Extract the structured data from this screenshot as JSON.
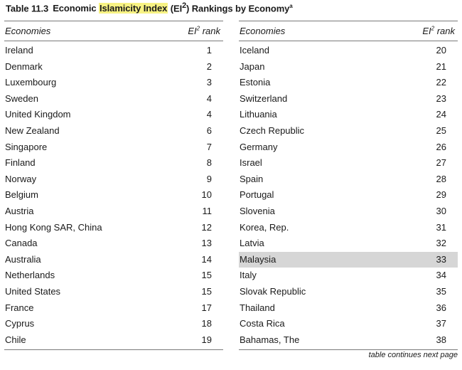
{
  "title": {
    "label": "Table 11.3",
    "pre": "Economic",
    "highlight": "Islamicity Index",
    "post_open": "(EI",
    "post_sup": "2",
    "post_close": ") Rankings by Economy",
    "asterisk": "a"
  },
  "columns": {
    "economies": "Economies",
    "rank_main": "EI",
    "rank_sup": "2",
    "rank_suffix": " rank"
  },
  "left_rows": [
    {
      "name": "Ireland",
      "rank": "1"
    },
    {
      "name": "Denmark",
      "rank": "2"
    },
    {
      "name": "Luxembourg",
      "rank": "3"
    },
    {
      "name": "Sweden",
      "rank": "4"
    },
    {
      "name": "United Kingdom",
      "rank": "4"
    },
    {
      "name": "New Zealand",
      "rank": "6"
    },
    {
      "name": "Singapore",
      "rank": "7"
    },
    {
      "name": "Finland",
      "rank": "8"
    },
    {
      "name": "Norway",
      "rank": "9"
    },
    {
      "name": "Belgium",
      "rank": "10"
    },
    {
      "name": "Austria",
      "rank": "11"
    },
    {
      "name": "Hong Kong SAR, China",
      "rank": "12"
    },
    {
      "name": "Canada",
      "rank": "13"
    },
    {
      "name": "Australia",
      "rank": "14"
    },
    {
      "name": "Netherlands",
      "rank": "15"
    },
    {
      "name": "United States",
      "rank": "15"
    },
    {
      "name": "France",
      "rank": "17"
    },
    {
      "name": "Cyprus",
      "rank": "18"
    },
    {
      "name": "Chile",
      "rank": "19"
    }
  ],
  "right_rows": [
    {
      "name": "Iceland",
      "rank": "20"
    },
    {
      "name": "Japan",
      "rank": "21"
    },
    {
      "name": "Estonia",
      "rank": "22"
    },
    {
      "name": "Switzerland",
      "rank": "23"
    },
    {
      "name": "Lithuania",
      "rank": "24"
    },
    {
      "name": "Czech Republic",
      "rank": "25"
    },
    {
      "name": "Germany",
      "rank": "26"
    },
    {
      "name": "Israel",
      "rank": "27"
    },
    {
      "name": "Spain",
      "rank": "28"
    },
    {
      "name": "Portugal",
      "rank": "29"
    },
    {
      "name": "Slovenia",
      "rank": "30"
    },
    {
      "name": "Korea, Rep.",
      "rank": "31"
    },
    {
      "name": "Latvia",
      "rank": "32"
    },
    {
      "name": "Malaysia",
      "rank": "33",
      "highlighted": true
    },
    {
      "name": "Italy",
      "rank": "34"
    },
    {
      "name": "Slovak Republic",
      "rank": "35"
    },
    {
      "name": "Thailand",
      "rank": "36"
    },
    {
      "name": "Costa Rica",
      "rank": "37"
    },
    {
      "name": "Bahamas, The",
      "rank": "38"
    }
  ],
  "footnote": "table continues next page",
  "colors": {
    "title_highlight": "#f7f283",
    "row_highlight": "#d6d6d6",
    "rule": "#7a7a7a"
  }
}
